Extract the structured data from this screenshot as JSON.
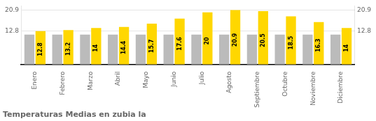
{
  "chart_data": {
    "type": "bar",
    "title": "Temperaturas Medias en zubia la",
    "categories": [
      "Enero",
      "Febrero",
      "Marzo",
      "Abril",
      "Mayo",
      "Junio",
      "Julio",
      "Agosto",
      "Septiembre",
      "Octubre",
      "Noviembre",
      "Diciembre"
    ],
    "series": [
      {
        "color": "#BBBBBB",
        "values": [
          11.5,
          11.5,
          11.5,
          11.5,
          11.5,
          11.5,
          11.5,
          11.5,
          11.5,
          11.5,
          11.5,
          11.5
        ]
      },
      {
        "color": "#FFD700",
        "values": [
          12.8,
          13.2,
          14.0,
          14.4,
          15.7,
          17.6,
          20.0,
          20.9,
          20.5,
          18.5,
          16.3,
          14.0
        ],
        "data_labels": true
      }
    ],
    "ylim": [
      0,
      22.5
    ],
    "yticks": [
      12.8,
      20.9
    ],
    "y2lim": [
      0,
      22.5
    ],
    "y2ticks": [
      12.8,
      20.9
    ],
    "grid": true
  }
}
